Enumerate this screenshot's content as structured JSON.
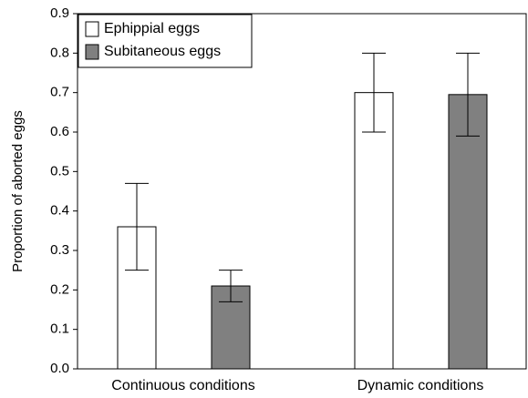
{
  "chart_data": {
    "type": "bar",
    "y_label": "Proportion of aborted eggs",
    "categories": [
      "Continuous conditions",
      "Dynamic conditions"
    ],
    "series": [
      {
        "name": "Ephippial eggs",
        "color": "#ffffff",
        "values": [
          0.36,
          0.7
        ],
        "errors": [
          0.11,
          0.1
        ]
      },
      {
        "name": "Subitaneous eggs",
        "color": "#808080",
        "values": [
          0.21,
          0.695
        ],
        "errors": [
          0.04,
          0.105
        ]
      }
    ],
    "ylim": [
      0,
      0.9
    ],
    "yticks": [
      {
        "value": 0,
        "label": "0.0"
      },
      0.1,
      0.2,
      0.3,
      0.4,
      0.5,
      0.6,
      0.7,
      0.8,
      0.9
    ],
    "legend": "upper-left"
  }
}
